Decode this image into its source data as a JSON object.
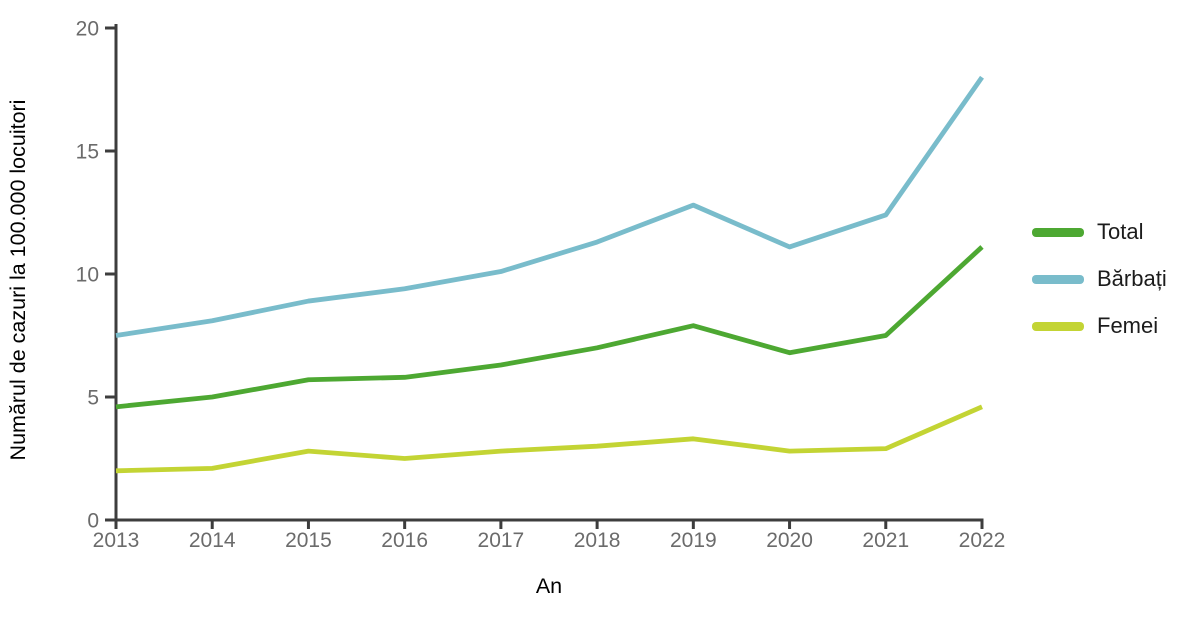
{
  "chart_data": {
    "type": "line",
    "title": "",
    "xlabel": "An",
    "ylabel": "Numărul de cazuri la 100.000 locuitori",
    "x": [
      2013,
      2014,
      2015,
      2016,
      2017,
      2018,
      2019,
      2020,
      2021,
      2022
    ],
    "ylim": [
      0,
      20
    ],
    "yticks": [
      0,
      5,
      10,
      15,
      20
    ],
    "grid": "off",
    "legend_position": "right",
    "series": [
      {
        "name": "Total",
        "color": "#4da832",
        "values": [
          4.6,
          5.0,
          5.7,
          5.8,
          6.3,
          7.0,
          7.9,
          6.8,
          7.5,
          11.1
        ]
      },
      {
        "name": "Bărbați",
        "color": "#79bccb",
        "values": [
          7.5,
          8.1,
          8.9,
          9.4,
          10.1,
          11.3,
          12.8,
          11.1,
          12.4,
          18.0
        ]
      },
      {
        "name": "Femei",
        "color": "#c3d434",
        "values": [
          2.0,
          2.1,
          2.8,
          2.5,
          2.8,
          3.0,
          3.3,
          2.8,
          2.9,
          4.6
        ]
      }
    ],
    "colors": {
      "axis": "#3d3d3d",
      "tick_label": "#6b6b6b",
      "axis_title": "#000000"
    }
  }
}
